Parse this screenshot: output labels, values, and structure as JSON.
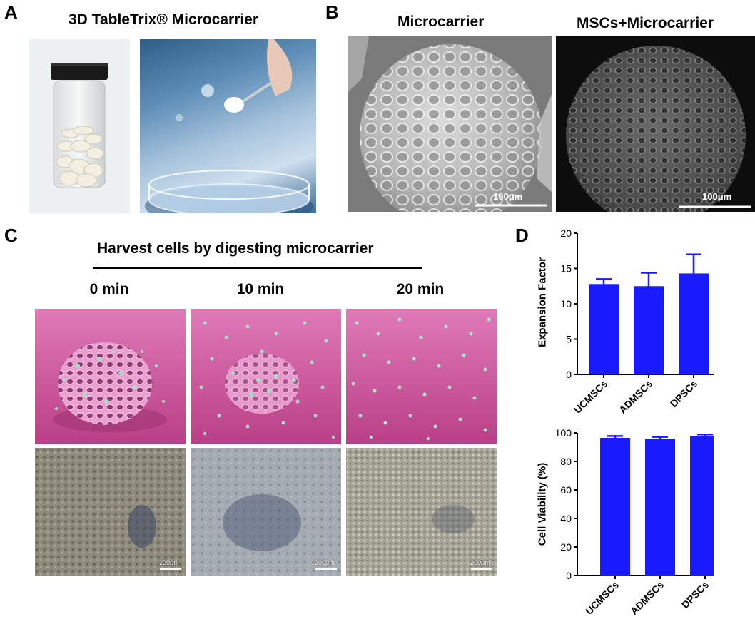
{
  "panels": {
    "A": {
      "letter": "A",
      "title": "3D TableTrix® Microcarrier"
    },
    "B": {
      "letter": "B",
      "left_title": "Microcarrier",
      "right_title": "MSCs+Microcarrier",
      "left_scale": "100μm",
      "right_scale": "100μm"
    },
    "C": {
      "letter": "C",
      "title": "Harvest cells by digesting microcarrier",
      "times": [
        "0 min",
        "10 min",
        "20 min"
      ],
      "scale_labels": [
        "200μm",
        "200μm",
        "200μm"
      ]
    },
    "D": {
      "letter": "D"
    }
  },
  "colors": {
    "bar": "#1a1aff",
    "pink": "#c94b93",
    "sem_light": "#9b9b9b",
    "sem_dark": "#3a3a3a"
  },
  "chart_data": [
    {
      "type": "bar",
      "categories": [
        "UCMSCs",
        "ADMSCs",
        "DPSCs"
      ],
      "values": [
        12.8,
        12.5,
        14.3
      ],
      "errors": [
        0.7,
        1.9,
        2.7
      ],
      "ylabel": "Expansion Factor",
      "xlabel": "",
      "ylim": [
        0,
        20
      ],
      "yticks": [
        "0",
        "5",
        "10",
        "15",
        "20"
      ]
    },
    {
      "type": "bar",
      "categories": [
        "UCMSCs",
        "ADMSCs",
        "DPSCs"
      ],
      "values": [
        96.5,
        96.0,
        97.5
      ],
      "errors": [
        1.3,
        1.2,
        1.4
      ],
      "ylabel": "Cell Viability (%)",
      "xlabel": "",
      "ylim": [
        0,
        100
      ],
      "yticks": [
        "0",
        "20",
        "40",
        "60",
        "80",
        "100"
      ]
    }
  ]
}
